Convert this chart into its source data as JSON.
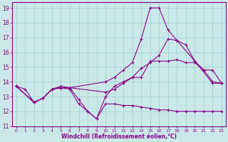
{
  "xlabel": "Windchill (Refroidissement éolien,°C)",
  "bg_color": "#cbe8e8",
  "grid_color": "#9dcfcf",
  "line_color": "#880088",
  "xlim": [
    -0.5,
    23.5
  ],
  "ylim": [
    11,
    19.4
  ],
  "yticks": [
    11,
    12,
    13,
    14,
    15,
    16,
    17,
    18,
    19
  ],
  "xticks": [
    0,
    1,
    2,
    3,
    4,
    5,
    6,
    7,
    8,
    9,
    10,
    11,
    12,
    13,
    14,
    15,
    16,
    17,
    18,
    19,
    20,
    21,
    22,
    23
  ],
  "curves": [
    {
      "x": [
        0,
        2,
        3,
        4,
        5,
        6,
        10,
        11,
        12,
        13,
        14,
        15,
        16,
        17,
        18,
        20,
        22,
        23
      ],
      "y": [
        13.7,
        12.6,
        12.9,
        13.5,
        13.6,
        13.6,
        14.0,
        14.3,
        14.8,
        15.3,
        16.9,
        19.0,
        19.0,
        17.5,
        16.8,
        15.4,
        13.9,
        13.9
      ]
    },
    {
      "x": [
        0,
        2,
        3,
        4,
        5,
        6,
        10,
        11,
        12,
        13,
        14,
        15,
        16,
        17,
        18,
        19,
        20,
        21,
        22,
        23
      ],
      "y": [
        13.7,
        12.6,
        12.9,
        13.5,
        13.6,
        13.6,
        13.3,
        13.5,
        13.9,
        14.3,
        14.9,
        15.3,
        15.8,
        16.9,
        16.8,
        16.5,
        15.4,
        14.8,
        14.8,
        13.9
      ]
    },
    {
      "x": [
        0,
        2,
        3,
        4,
        5,
        6,
        7,
        8,
        9,
        10,
        11,
        12,
        13,
        14,
        15,
        16,
        17,
        18,
        19,
        20,
        21,
        22,
        23
      ],
      "y": [
        13.7,
        12.6,
        12.9,
        13.5,
        13.7,
        13.6,
        12.8,
        12.0,
        11.5,
        13.0,
        13.7,
        14.0,
        14.3,
        14.3,
        15.4,
        15.4,
        15.4,
        15.5,
        15.3,
        15.3,
        14.8,
        14.0,
        13.9
      ]
    },
    {
      "x": [
        0,
        1,
        2,
        3,
        4,
        5,
        6,
        7,
        8,
        9,
        10,
        11,
        12,
        13,
        14,
        15,
        16,
        17,
        18,
        19,
        20,
        21,
        22,
        23
      ],
      "y": [
        13.7,
        13.5,
        12.6,
        12.9,
        13.5,
        13.6,
        13.5,
        12.5,
        12.0,
        11.5,
        12.5,
        12.5,
        12.4,
        12.4,
        12.3,
        12.2,
        12.1,
        12.1,
        12.0,
        12.0,
        12.0,
        12.0,
        12.0,
        12.0
      ]
    }
  ]
}
